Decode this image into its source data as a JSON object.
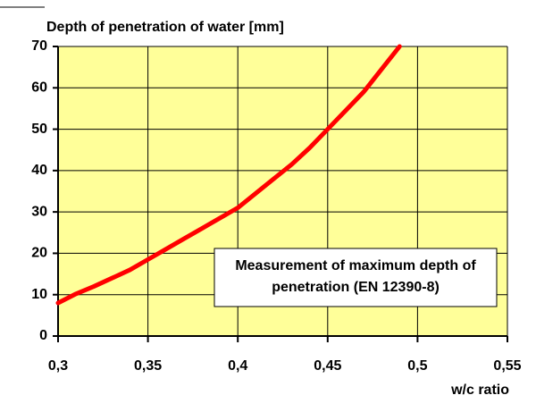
{
  "chart_data": {
    "type": "line",
    "title": "Depth of penetration of water [mm]",
    "x_label": "w/c ratio",
    "annotation": [
      "Measurement of maximum depth of",
      "penetration (EN 12390-8)"
    ],
    "x": [
      0.3,
      0.31,
      0.32,
      0.33,
      0.34,
      0.35,
      0.36,
      0.37,
      0.38,
      0.39,
      0.4,
      0.41,
      0.42,
      0.43,
      0.44,
      0.45,
      0.46,
      0.47,
      0.48,
      0.49
    ],
    "values": [
      8,
      10.2,
      12,
      14,
      16,
      18.5,
      21,
      23.5,
      26,
      28.5,
      31,
      34.5,
      38,
      41.5,
      45.5,
      50,
      54.5,
      59,
      64.5,
      70
    ],
    "color": "#ff0000",
    "xlim": [
      0.3,
      0.55
    ],
    "xticks": [
      {
        "value": 0.3,
        "label": "0,3"
      },
      {
        "value": 0.35,
        "label": "0,35"
      },
      {
        "value": 0.4,
        "label": "0,4"
      },
      {
        "value": 0.45,
        "label": "0,45"
      },
      {
        "value": 0.5,
        "label": "0,5"
      },
      {
        "value": 0.55,
        "label": "0,55"
      }
    ],
    "ylim": [
      0,
      70
    ],
    "yticks": [
      0,
      10,
      20,
      30,
      40,
      50,
      60,
      70
    ],
    "grid": true,
    "background": "#ffff99"
  }
}
